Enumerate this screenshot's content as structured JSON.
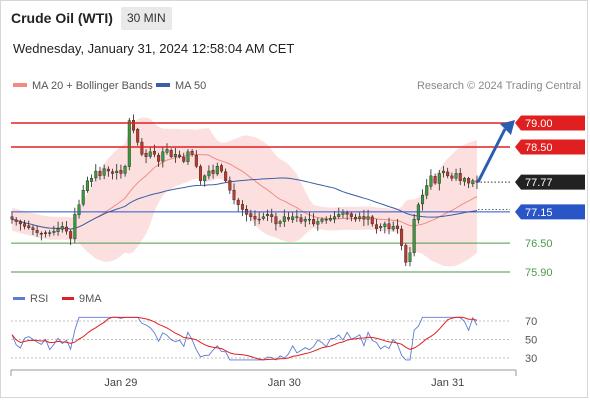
{
  "header": {
    "title": "Crude Oil (WTI)",
    "timeframe": "30 MIN",
    "datetime": "Wednesday, January 31, 2024 12:58:04 AM CET"
  },
  "legend": {
    "items": [
      {
        "label": "MA 20 + Bollinger Bands",
        "color": "#f28b82"
      },
      {
        "label": "MA 50",
        "color": "#3a5ea8"
      }
    ],
    "credit": "Research © 2024 Trading Central"
  },
  "rsi_legend": [
    {
      "label": "RSI",
      "color": "#5b7bd5"
    },
    {
      "label": "9MA",
      "color": "#e02020"
    }
  ],
  "colors": {
    "resistance": "#e02020",
    "support_major": "#2a55c6",
    "support_minor": "#4a9a4a",
    "last": "#222222",
    "arrow": "#2a5db0"
  },
  "chart_data": {
    "type": "candlestick",
    "price_levels": [
      {
        "value": "79.00",
        "kind": "resistance"
      },
      {
        "value": "78.50",
        "kind": "resistance"
      },
      {
        "value": "77.77",
        "kind": "last"
      },
      {
        "value": "77.15",
        "kind": "support_major"
      },
      {
        "value": "76.50",
        "kind": "support_minor"
      },
      {
        "value": "75.90",
        "kind": "support_minor"
      }
    ],
    "x_tick_labels": [
      "Jan 29",
      "Jan 30",
      "Jan 31"
    ],
    "rsi": {
      "tick_labels": [
        "70",
        "50",
        "30"
      ],
      "ylim": [
        20,
        80
      ]
    },
    "closes": [
      77.0,
      76.95,
      76.9,
      76.85,
      76.82,
      76.78,
      76.72,
      76.7,
      76.7,
      76.72,
      76.75,
      76.8,
      76.85,
      76.75,
      76.6,
      77.1,
      77.3,
      77.6,
      77.8,
      77.85,
      78.0,
      77.9,
      78.05,
      78.0,
      77.95,
      78.0,
      77.95,
      78.1,
      79.05,
      78.85,
      78.6,
      78.35,
      78.3,
      78.4,
      78.35,
      78.2,
      78.4,
      78.45,
      78.3,
      78.35,
      78.3,
      78.2,
      78.4,
      78.35,
      78.1,
      77.8,
      77.9,
      78.0,
      77.95,
      78.1,
      78.0,
      77.8,
      77.6,
      77.4,
      77.3,
      77.2,
      77.1,
      77.05,
      77.0,
      77.0,
      77.05,
      77.1,
      77.05,
      76.9,
      76.95,
      77.05,
      77.0,
      77.05,
      77.05,
      76.95,
      77.0,
      77.0,
      76.9,
      76.95,
      77.0,
      76.98,
      77.02,
      77.05,
      77.1,
      77.15,
      77.1,
      77.05,
      77.0,
      77.05,
      77.0,
      77.05,
      76.9,
      76.8,
      76.85,
      76.9,
      76.8,
      76.85,
      76.8,
      76.45,
      76.1,
      76.3,
      77.0,
      77.3,
      77.5,
      77.7,
      77.9,
      77.75,
      77.95,
      78.0,
      77.9,
      77.85,
      77.95,
      77.8,
      77.85,
      77.75,
      77.8,
      77.77
    ]
  }
}
